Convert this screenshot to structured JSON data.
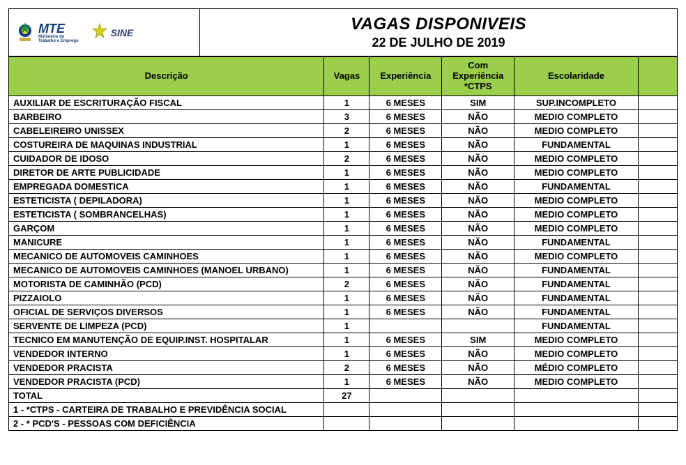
{
  "header": {
    "title": "VAGAS DISPONIVEIS",
    "date": "22 DE JULHO DE 2019",
    "logo1_big": "MTE",
    "logo1_small1": "Ministério do",
    "logo1_small2": "Trabalho e Emprego",
    "logo2": "SINE"
  },
  "columns": {
    "desc": "Descrição",
    "vagas": "Vagas",
    "exp": "Experiência",
    "ctps": "Com Experiência *CTPS",
    "esc": "Escolaridade",
    "empty": ""
  },
  "rows": [
    {
      "desc": "AUXILIAR DE ESCRITURAÇÃO FISCAL",
      "vagas": "1",
      "exp": "6 MESES",
      "ctps": "SIM",
      "esc": "SUP.INCOMPLETO"
    },
    {
      "desc": "BARBEIRO",
      "vagas": "3",
      "exp": "6 MESES",
      "ctps": "NÃO",
      "esc": "MEDIO COMPLETO"
    },
    {
      "desc": "CABELEIREIRO UNISSEX",
      "vagas": "2",
      "exp": "6 MESES",
      "ctps": "NÃO",
      "esc": "MEDIO COMPLETO"
    },
    {
      "desc": "COSTUREIRA DE MAQUINAS INDUSTRIAL",
      "vagas": "1",
      "exp": "6 MESES",
      "ctps": "NÃO",
      "esc": "FUNDAMENTAL"
    },
    {
      "desc": "CUIDADOR DE IDOSO",
      "vagas": "2",
      "exp": "6 MESES",
      "ctps": "NÃO",
      "esc": "MEDIO COMPLETO"
    },
    {
      "desc": "DIRETOR DE ARTE PUBLICIDADE",
      "vagas": "1",
      "exp": "6 MESES",
      "ctps": "NÃO",
      "esc": "MEDIO COMPLETO"
    },
    {
      "desc": "EMPREGADA DOMESTICA",
      "vagas": "1",
      "exp": "6 MESES",
      "ctps": "NÃO",
      "esc": "FUNDAMENTAL"
    },
    {
      "desc": "ESTETICISTA ( DEPILADORA)",
      "vagas": "1",
      "exp": "6 MESES",
      "ctps": "NÃO",
      "esc": "MEDIO COMPLETO"
    },
    {
      "desc": "ESTETICISTA ( SOMBRANCELHAS)",
      "vagas": "1",
      "exp": "6 MESES",
      "ctps": "NÃO",
      "esc": "MEDIO COMPLETO"
    },
    {
      "desc": "GARÇOM",
      "vagas": "1",
      "exp": "6 MESES",
      "ctps": "NÃO",
      "esc": "MEDIO COMPLETO"
    },
    {
      "desc": "MANICURE",
      "vagas": "1",
      "exp": "6 MESES",
      "ctps": "NÃO",
      "esc": "FUNDAMENTAL"
    },
    {
      "desc": "MECANICO DE AUTOMOVEIS CAMINHOES",
      "vagas": "1",
      "exp": "6 MESES",
      "ctps": "NÃO",
      "esc": "MEDIO COMPLETO"
    },
    {
      "desc": "MECANICO DE AUTOMOVEIS CAMINHOES (MANOEL URBANO)",
      "vagas": "1",
      "exp": "6 MESES",
      "ctps": "NÃO",
      "esc": "FUNDAMENTAL"
    },
    {
      "desc": "MOTORISTA DE CAMINHÃO (PCD)",
      "vagas": "2",
      "exp": "6 MESES",
      "ctps": "NÃO",
      "esc": "FUNDAMENTAL"
    },
    {
      "desc": "PIZZAIOLO",
      "vagas": "1",
      "exp": "6 MESES",
      "ctps": "NÃO",
      "esc": "FUNDAMENTAL"
    },
    {
      "desc": "OFICIAL DE SERVIÇOS DIVERSOS",
      "vagas": "1",
      "exp": "6 MESES",
      "ctps": "NÃO",
      "esc": "FUNDAMENTAL"
    },
    {
      "desc": "SERVENTE DE LIMPEZA (PCD)",
      "vagas": "1",
      "exp": "",
      "ctps": "",
      "esc": "FUNDAMENTAL"
    },
    {
      "desc": "TECNICO EM MANUTENÇÃO DE EQUIP.INST. HOSPITALAR",
      "vagas": "1",
      "exp": "6 MESES",
      "ctps": "SIM",
      "esc": "MEDIO COMPLETO"
    },
    {
      "desc": "VENDEDOR INTERNO",
      "vagas": "1",
      "exp": "6 MESES",
      "ctps": "NÃO",
      "esc": "MEDIO COMPLETO"
    },
    {
      "desc": "VENDEDOR PRACISTA",
      "vagas": "2",
      "exp": "6 MESES",
      "ctps": "NÃO",
      "esc": "MÉDIO COMPLETO"
    },
    {
      "desc": "VENDEDOR PRACISTA (PCD)",
      "vagas": "1",
      "exp": "6 MESES",
      "ctps": "NÃO",
      "esc": "MEDIO COMPLETO"
    }
  ],
  "total": {
    "label": "TOTAL",
    "value": "27"
  },
  "footnotes": [
    "1 - *CTPS - CARTEIRA DE TRABALHO E PREVIDÊNCIA SOCIAL",
    "2 - * PCD'S - PESSOAS COM DEFICIÊNCIA"
  ],
  "style": {
    "header_bg": "#9bce4a",
    "border_color": "#000000",
    "font_size_cell": 13,
    "font_size_title": 24,
    "font_size_date": 18
  }
}
